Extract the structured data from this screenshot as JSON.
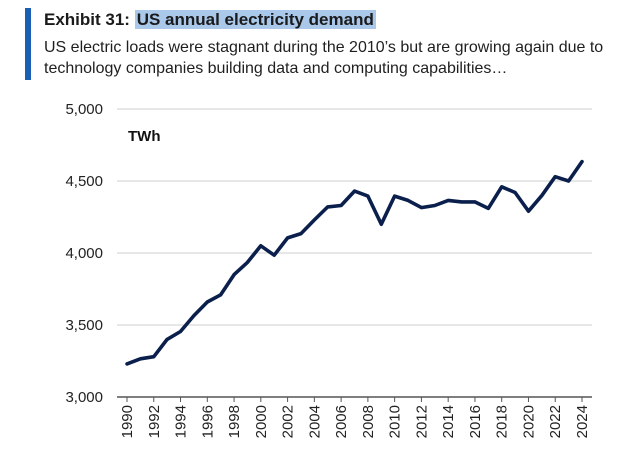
{
  "header": {
    "exhibit_label": "Exhibit 31:",
    "title": "US annual electricity demand",
    "subtitle": "US electric loads were stagnant during the 2010’s but are growing again due to technology companies building data and computing capabilities…",
    "accent_color": "#1a5fb4",
    "highlight_color": "#a9c8ea"
  },
  "chart_data": {
    "type": "line",
    "title": "US annual electricity demand",
    "ylabel": "TWh",
    "xlabel": "",
    "ylim": [
      3000,
      5000
    ],
    "yticks": [
      3000,
      3500,
      4000,
      4500,
      5000
    ],
    "ytick_labels": [
      "3,000",
      "3,500",
      "4,000",
      "4,500",
      "5,000"
    ],
    "xticks": [
      1990,
      1992,
      1994,
      1996,
      1998,
      2000,
      2002,
      2004,
      2006,
      2008,
      2010,
      2012,
      2014,
      2016,
      2018,
      2020,
      2022,
      2024
    ],
    "grid": "horizontal",
    "line_color": "#0b1f4d",
    "series": [
      {
        "x": [
          1990,
          1991,
          1992,
          1993,
          1994,
          1995,
          1996,
          1997,
          1998,
          1999,
          2000,
          2001,
          2002,
          2003,
          2004,
          2005,
          2006,
          2007,
          2008,
          2009,
          2010,
          2011,
          2012,
          2013,
          2014,
          2015,
          2016,
          2017,
          2018,
          2019,
          2020,
          2021,
          2022,
          2023,
          2024
        ],
        "values": [
          3230,
          3265,
          3280,
          3400,
          3455,
          3565,
          3660,
          3710,
          3850,
          3935,
          4050,
          3985,
          4105,
          4135,
          4230,
          4320,
          4330,
          4430,
          4395,
          4200,
          4395,
          4365,
          4315,
          4330,
          4365,
          4355,
          4355,
          4310,
          4460,
          4420,
          4290,
          4400,
          4530,
          4500,
          4635
        ]
      }
    ]
  }
}
